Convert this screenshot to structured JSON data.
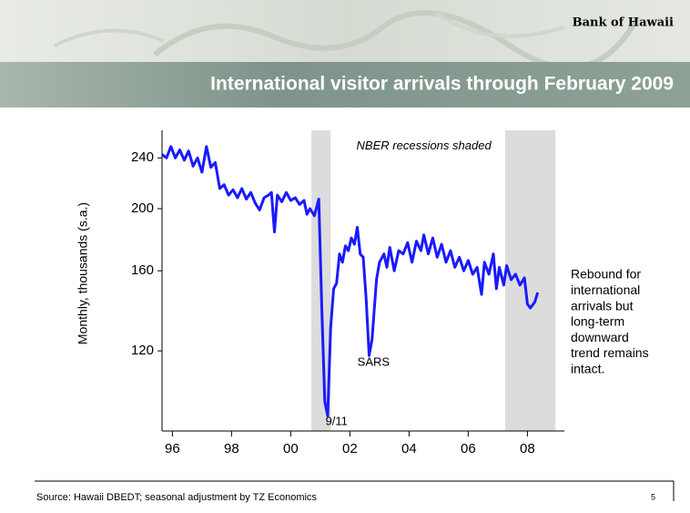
{
  "brand": "Bank of Hawaii",
  "title": "International visitor arrivals through February 2009",
  "source": "Source:  Hawaii DBEDT; seasonal adjustment by TZ Economics",
  "page_number": "5",
  "chart_data": {
    "type": "line",
    "y_label": "Monthly, thousands (s.a.)",
    "log_scale": true,
    "xlim": [
      1996.15,
      2009.75
    ],
    "ylim": [
      90,
      265
    ],
    "yticks": [
      120,
      160,
      200,
      240
    ],
    "xticks": [
      {
        "value": 1996.5,
        "label": "96"
      },
      {
        "value": 1998.5,
        "label": "98"
      },
      {
        "value": 2000.5,
        "label": "00"
      },
      {
        "value": 2002.5,
        "label": "02"
      },
      {
        "value": 2004.5,
        "label": "04"
      },
      {
        "value": 2006.5,
        "label": "06"
      },
      {
        "value": 2008.5,
        "label": "08"
      }
    ],
    "recessions": [
      [
        2001.2,
        2001.85
      ],
      [
        2007.75,
        2009.45
      ]
    ],
    "recession_color": "#dcdcdc",
    "annotations": [
      {
        "text": "NBER recessions shaded",
        "x": 2005.0,
        "y": 250
      },
      {
        "text": "9/11",
        "x": 2002.05,
        "y": 93
      },
      {
        "text": "SARS",
        "x": 2003.3,
        "y": 115
      }
    ],
    "side_note": [
      "Rebound for",
      "international",
      "arrivals but",
      "long-term",
      "downward",
      "trend remains",
      "intact."
    ],
    "x": [
      1996.15,
      1996.3,
      1996.45,
      1996.6,
      1996.75,
      1996.9,
      1997.05,
      1997.2,
      1997.35,
      1997.5,
      1997.65,
      1997.8,
      1997.95,
      1998.1,
      1998.25,
      1998.4,
      1998.55,
      1998.7,
      1998.85,
      1999.0,
      1999.15,
      1999.3,
      1999.45,
      1999.6,
      1999.75,
      1999.85,
      1999.95,
      2000.05,
      2000.2,
      2000.35,
      2000.5,
      2000.65,
      2000.8,
      2000.95,
      2001.05,
      2001.15,
      2001.3,
      2001.45,
      2001.55,
      2001.65,
      2001.75,
      2001.85,
      2001.95,
      2002.05,
      2002.15,
      2002.25,
      2002.35,
      2002.45,
      2002.55,
      2002.65,
      2002.75,
      2002.85,
      2002.95,
      2003.05,
      2003.15,
      2003.25,
      2003.4,
      2003.5,
      2003.65,
      2003.75,
      2003.85,
      2004.0,
      2004.15,
      2004.3,
      2004.45,
      2004.6,
      2004.75,
      2004.9,
      2005.0,
      2005.15,
      2005.3,
      2005.45,
      2005.6,
      2005.75,
      2005.9,
      2006.05,
      2006.2,
      2006.35,
      2006.5,
      2006.65,
      2006.8,
      2006.95,
      2007.05,
      2007.2,
      2007.35,
      2007.45,
      2007.55,
      2007.7,
      2007.8,
      2007.95,
      2008.1,
      2008.25,
      2008.4,
      2008.5,
      2008.6,
      2008.75,
      2008.85
    ],
    "series": [
      {
        "color": "#1a1aff",
        "values": [
          243,
          240,
          250,
          240,
          247,
          238,
          246,
          233,
          240,
          228,
          250,
          232,
          236,
          215,
          218,
          210,
          214,
          208,
          215,
          207,
          212,
          204,
          199,
          208,
          210,
          212,
          184,
          210,
          205,
          212,
          206,
          208,
          203,
          206,
          196,
          200,
          195,
          207,
          140,
          100,
          95,
          130,
          150,
          153,
          170,
          165,
          175,
          172,
          180,
          176,
          187,
          170,
          168,
          145,
          118,
          125,
          155,
          165,
          170,
          162,
          174,
          160,
          172,
          170,
          177,
          165,
          178,
          172,
          182,
          170,
          180,
          168,
          176,
          165,
          172,
          162,
          168,
          160,
          166,
          158,
          162,
          147,
          165,
          158,
          170,
          150,
          162,
          152,
          163,
          155,
          158,
          152,
          156,
          142,
          140,
          143,
          148
        ]
      }
    ]
  }
}
